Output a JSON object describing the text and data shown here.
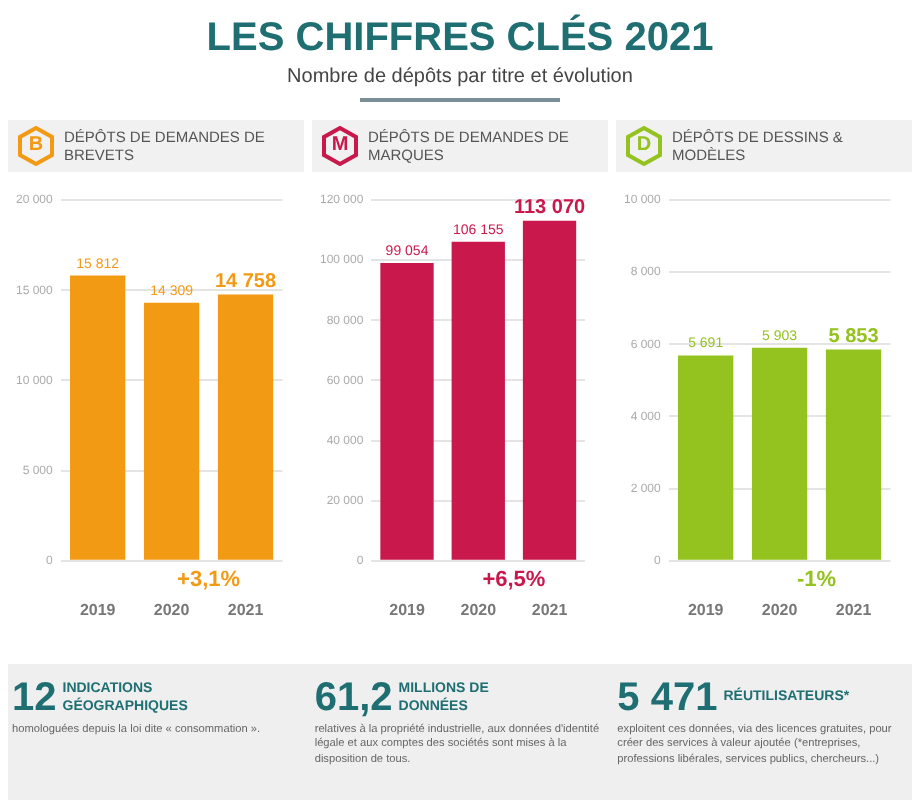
{
  "chart_data": [
    {
      "type": "other",
      "title": "LES CHIFFRES CLÉS 2021",
      "subtitle": "Nombre de dépôts par titre et évolution"
    },
    {
      "type": "bar",
      "title": "DÉPÔTS DE DEMANDES DE BREVETS",
      "categories": [
        "2019",
        "2020",
        "2021"
      ],
      "values": [
        15812,
        14309,
        14758
      ],
      "value_labels": [
        "15 812",
        "14 309",
        "14 758"
      ],
      "color": "#f39a14",
      "ylim": [
        0,
        20000
      ],
      "yticks": [
        {
          "value": 0,
          "label": "0"
        },
        {
          "value": 5000,
          "label": "5 000"
        },
        {
          "value": 10000,
          "label": "10 000"
        },
        {
          "value": 15000,
          "label": "15 000"
        },
        {
          "value": 20000,
          "label": "20 000"
        }
      ],
      "grid": "y",
      "annotations": [
        "B",
        "+3,1%"
      ]
    },
    {
      "type": "bar",
      "title": "DÉPÔTS DE DEMANDES DE MARQUES",
      "categories": [
        "2019",
        "2020",
        "2021"
      ],
      "values": [
        99054,
        106155,
        113070
      ],
      "value_labels": [
        "99 054",
        "106 155",
        "113 070"
      ],
      "color": "#c8184c",
      "ylim": [
        0,
        120000
      ],
      "yticks": [
        {
          "value": 0,
          "label": "0"
        },
        {
          "value": 20000,
          "label": "20 000"
        },
        {
          "value": 40000,
          "label": "40 000"
        },
        {
          "value": 60000,
          "label": "60 000"
        },
        {
          "value": 80000,
          "label": "80 000"
        },
        {
          "value": 100000,
          "label": "100 000"
        },
        {
          "value": 120000,
          "label": "120 000"
        }
      ],
      "grid": "y",
      "annotations": [
        "M",
        "+6,5%"
      ]
    },
    {
      "type": "bar",
      "title": "DÉPÔTS DE DESSINS & MODÈLES",
      "categories": [
        "2019",
        "2020",
        "2021"
      ],
      "values": [
        5691,
        5903,
        5853
      ],
      "value_labels": [
        "5 691",
        "5 903",
        "5 853"
      ],
      "color": "#94c21f",
      "ylim": [
        0,
        10000
      ],
      "yticks": [
        {
          "value": 0,
          "label": "0"
        },
        {
          "value": 2000,
          "label": "2 000"
        },
        {
          "value": 4000,
          "label": "4 000"
        },
        {
          "value": 6000,
          "label": "6 000"
        },
        {
          "value": 8000,
          "label": "8 000"
        },
        {
          "value": 10000,
          "label": "10 000"
        }
      ],
      "grid": "y",
      "annotations": [
        "D",
        "-1%"
      ]
    },
    {
      "type": "other",
      "annotations": [
        "12",
        "INDICATIONS GÉOGRAPHIQUES",
        "homologuées depuis la loi dite « consommation ».",
        "61,2",
        "MILLIONS DE DONNÉES",
        "relatives à la propriété industrielle, aux données d'identité légale et aux comptes des sociétés sont mises à la disposition de tous.",
        "5 471",
        "RÉUTILISATEURS*",
        "exploitent ces données, via des licences gratuites, pour créer des services à valeur ajoutée (*entreprises, professions libérales, services publics, chercheurs...)"
      ]
    }
  ]
}
